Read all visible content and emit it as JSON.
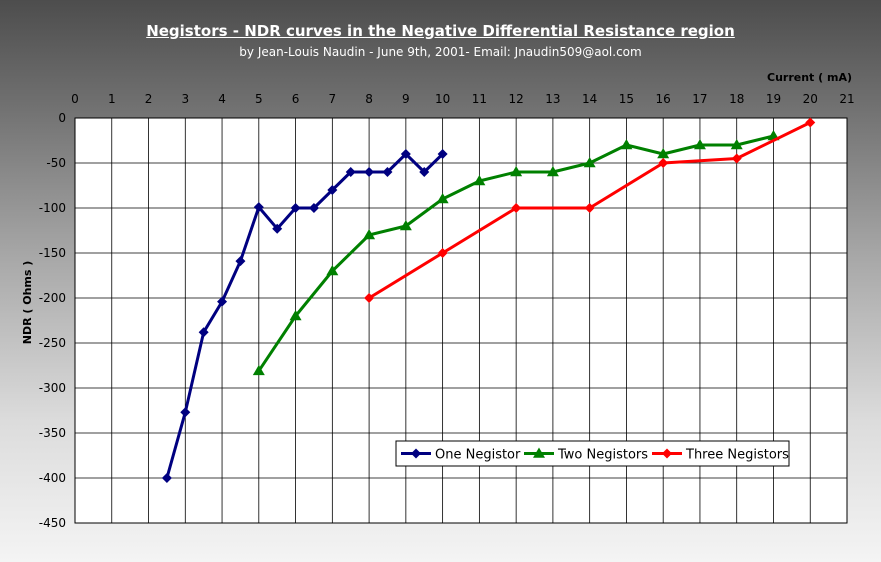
{
  "chart_data": {
    "type": "line",
    "title": "Negistors - NDR curves in the Negative Differential Resistance region",
    "subtitle": "by Jean-Louis Naudin - June 9th, 2001- Email: Jnaudin509@aol.com",
    "xlabel": "Current ( mA)",
    "ylabel": "NDR ( Ohms )",
    "xlim": [
      0,
      21
    ],
    "ylim": [
      -450,
      0
    ],
    "x_ticks": [
      0,
      1,
      2,
      3,
      4,
      5,
      6,
      7,
      8,
      9,
      10,
      11,
      12,
      13,
      14,
      15,
      16,
      17,
      18,
      19,
      20,
      21
    ],
    "y_ticks": [
      0,
      -50,
      -100,
      -150,
      -200,
      -250,
      -300,
      -350,
      -400,
      -450
    ],
    "x_axis_position": "top",
    "grid": true,
    "legend_position": "bottom-right",
    "series": [
      {
        "name": "One Negistor",
        "color": "#000080",
        "marker": "diamond",
        "points": [
          [
            2.5,
            -400
          ],
          [
            3,
            -327
          ],
          [
            3.5,
            -238
          ],
          [
            4,
            -204
          ],
          [
            4.5,
            -159
          ],
          [
            5,
            -99
          ],
          [
            5.5,
            -123
          ],
          [
            6,
            -100
          ],
          [
            6.5,
            -100
          ],
          [
            7,
            -80
          ],
          [
            7.5,
            -60
          ],
          [
            8,
            -60
          ],
          [
            8.5,
            -60
          ],
          [
            9,
            -40
          ],
          [
            9.5,
            -60
          ],
          [
            10,
            -40
          ]
        ]
      },
      {
        "name": "Two Negistors",
        "color": "#008000",
        "marker": "triangle",
        "points": [
          [
            5,
            -281
          ],
          [
            6,
            -220
          ],
          [
            7,
            -170
          ],
          [
            8,
            -130
          ],
          [
            9,
            -120
          ],
          [
            10,
            -90
          ],
          [
            11,
            -70
          ],
          [
            12,
            -60
          ],
          [
            13,
            -60
          ],
          [
            14,
            -50
          ],
          [
            15,
            -30
          ],
          [
            16,
            -40
          ],
          [
            17,
            -30
          ],
          [
            18,
            -30
          ],
          [
            19,
            -20
          ]
        ]
      },
      {
        "name": "Three Negistors",
        "color": "#ff0000",
        "marker": "diamond",
        "points": [
          [
            8,
            -200
          ],
          [
            10,
            -150
          ],
          [
            12,
            -100
          ],
          [
            14,
            -100
          ],
          [
            16,
            -50
          ],
          [
            18,
            -45
          ],
          [
            20,
            -5
          ]
        ]
      }
    ]
  }
}
